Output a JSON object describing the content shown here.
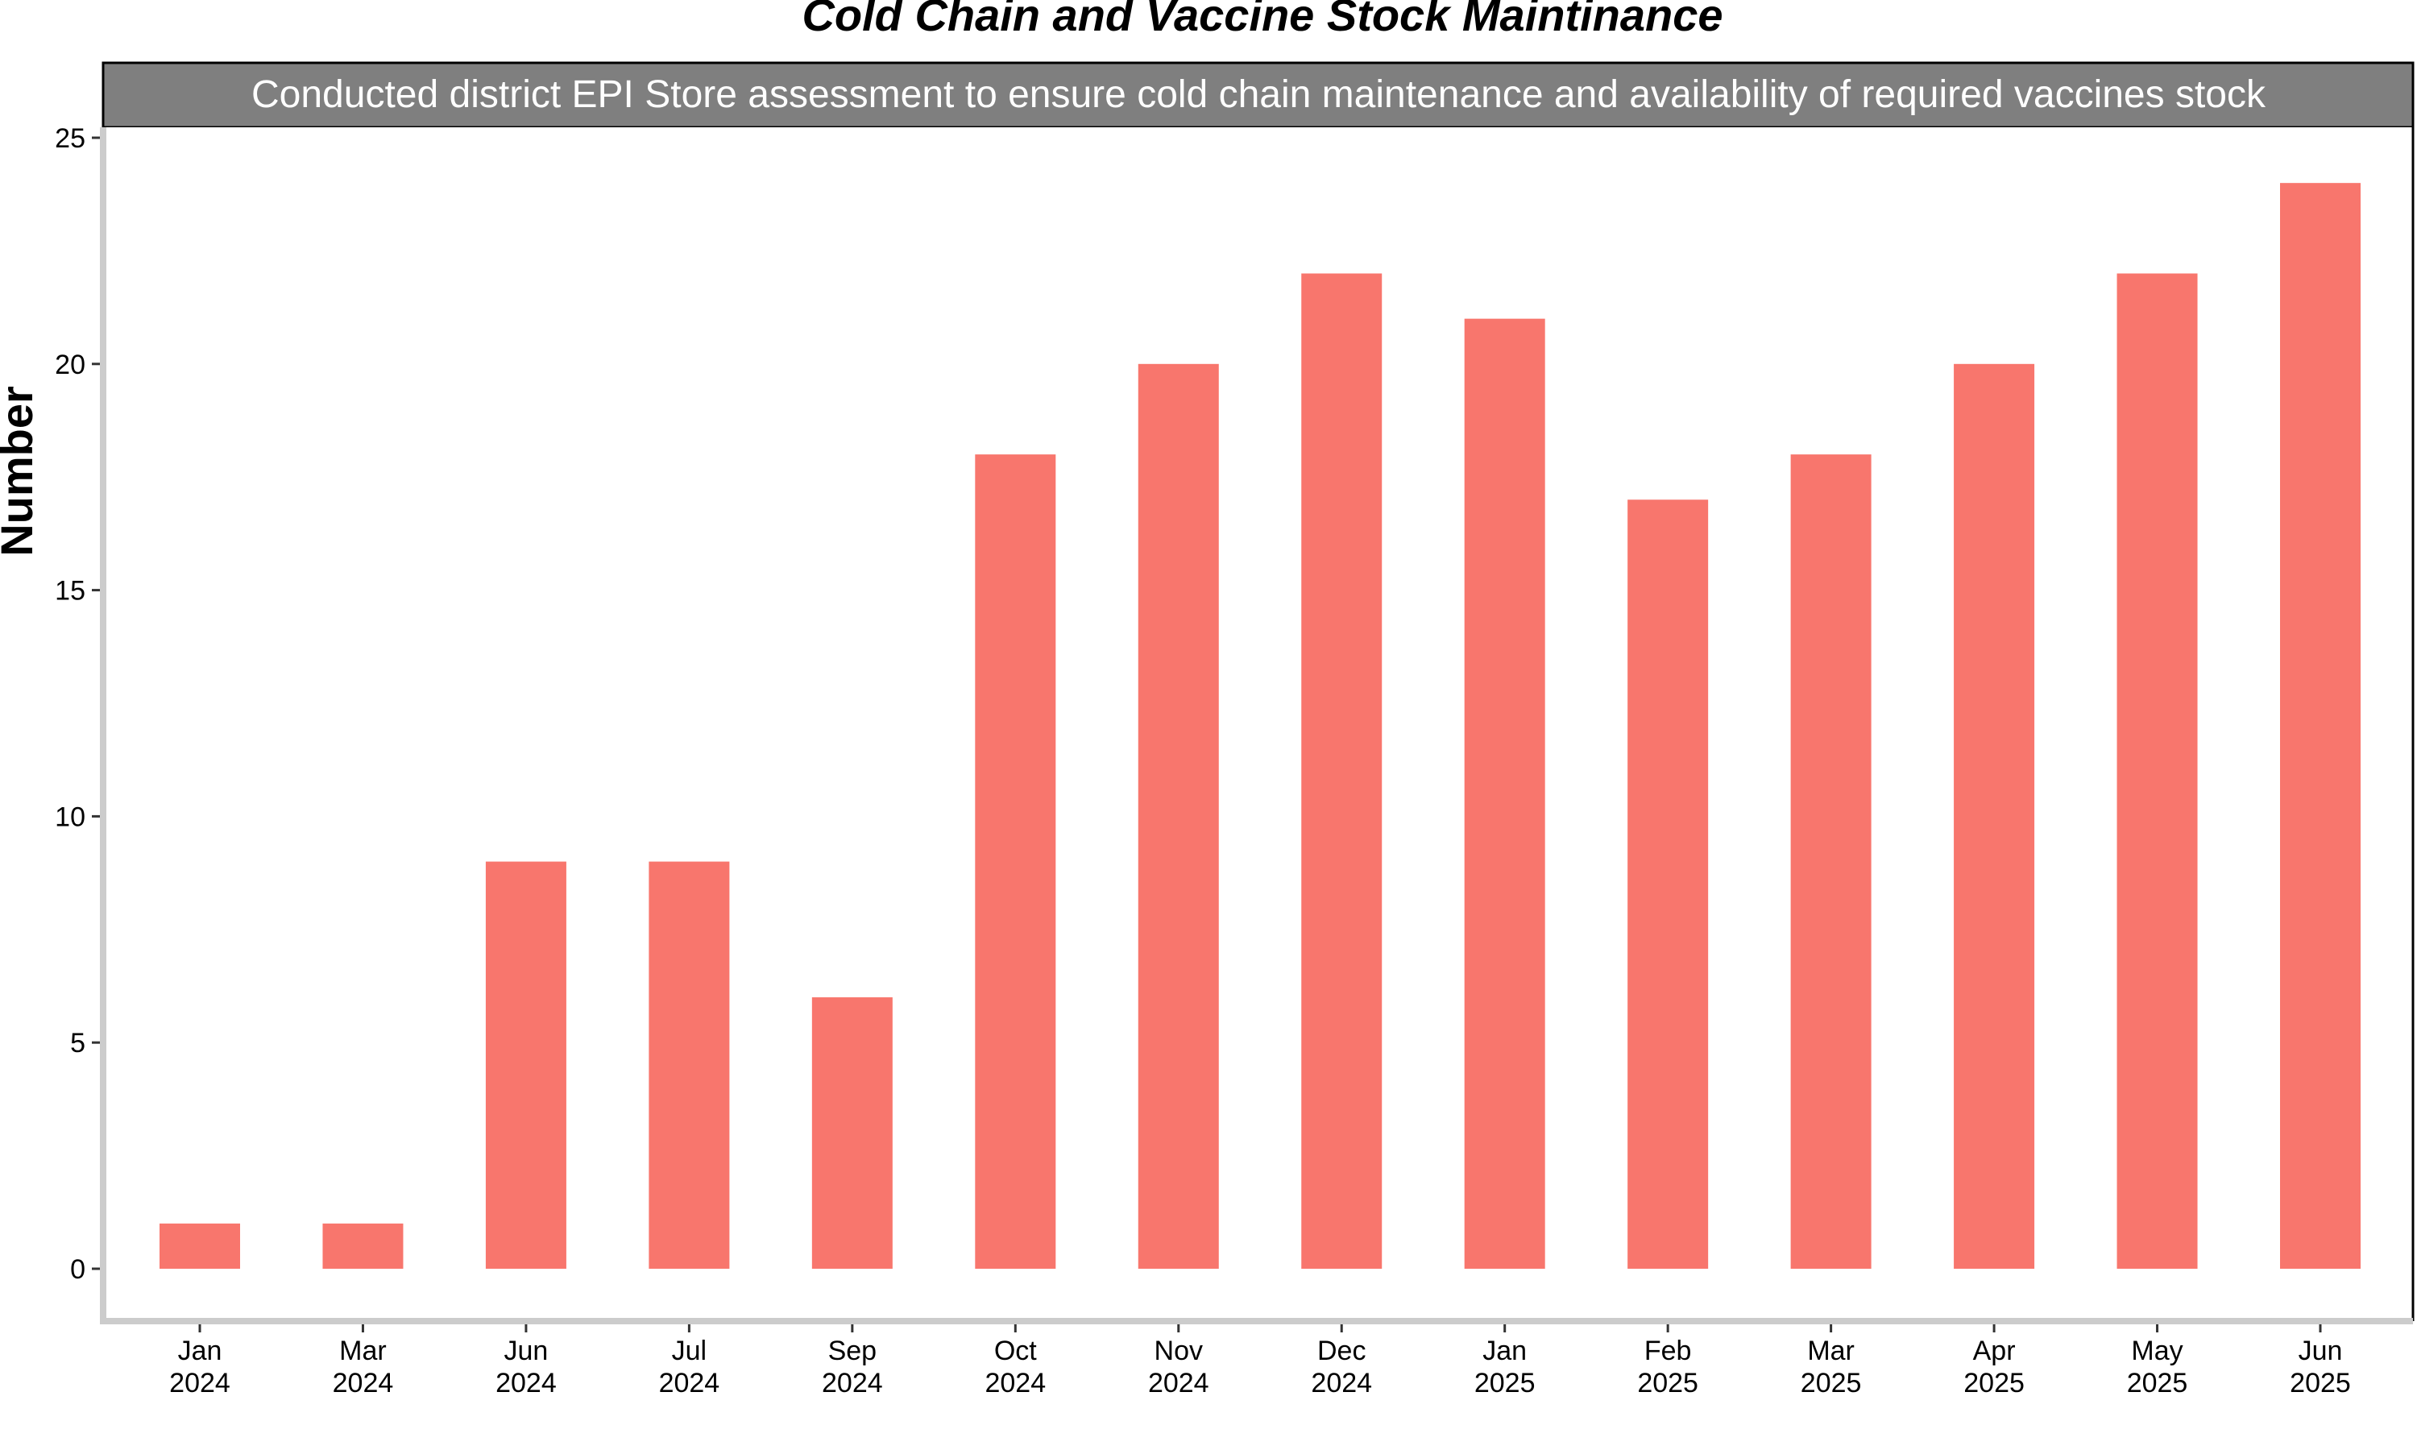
{
  "chart_data": {
    "type": "bar",
    "title": "Cold Chain and Vaccine Stock Maintinance",
    "facet_label": "Conducted district EPI Store assessment to ensure cold chain maintenance and availability of required vaccines stock",
    "xlabel": "",
    "ylabel": "Number",
    "categories": [
      [
        "Jan",
        "2024"
      ],
      [
        "Mar",
        "2024"
      ],
      [
        "Jun",
        "2024"
      ],
      [
        "Jul",
        "2024"
      ],
      [
        "Sep",
        "2024"
      ],
      [
        "Oct",
        "2024"
      ],
      [
        "Nov",
        "2024"
      ],
      [
        "Dec",
        "2024"
      ],
      [
        "Jan",
        "2025"
      ],
      [
        "Feb",
        "2025"
      ],
      [
        "Mar",
        "2025"
      ],
      [
        "Apr",
        "2025"
      ],
      [
        "May",
        "2025"
      ],
      [
        "Jun",
        "2025"
      ]
    ],
    "values": [
      1,
      1,
      9,
      9,
      6,
      18,
      20,
      22,
      21,
      17,
      18,
      20,
      22,
      24
    ],
    "ylim": [
      0,
      25
    ],
    "yticks": [
      0,
      5,
      10,
      15,
      20,
      25
    ],
    "grid": false,
    "legend": "none",
    "colors": {
      "bar": "#F8766D",
      "strip_background": "#7f7f7f",
      "axis": "#cccccc",
      "border": "#000000"
    }
  }
}
